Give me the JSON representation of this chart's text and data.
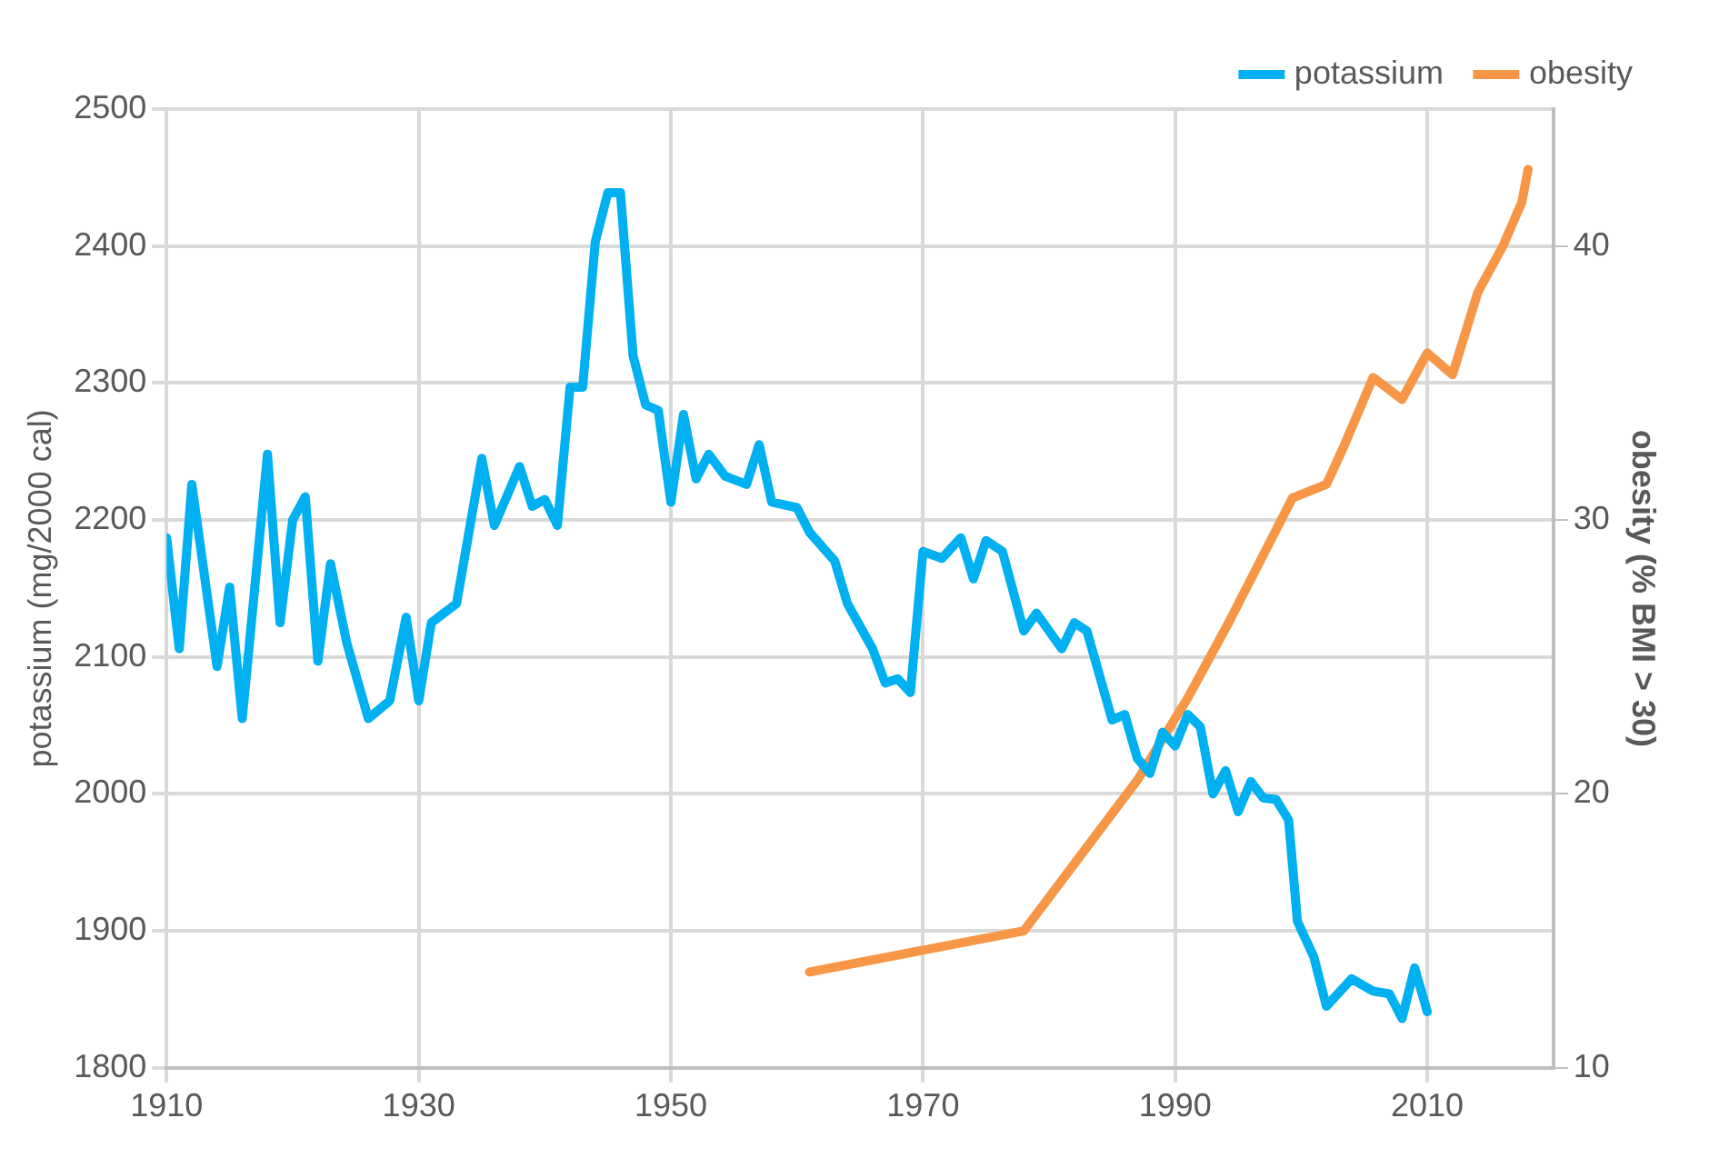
{
  "chart_data": {
    "type": "line",
    "ylabel": "potassium (mg/2000 cal)",
    "y2label": "obesity (% BMI > 30)",
    "xlim": [
      1910,
      2020
    ],
    "xticks": [
      1910,
      1930,
      1950,
      1970,
      1990,
      2010
    ],
    "ylim": [
      1800,
      2500
    ],
    "yticks": [
      1800,
      1900,
      2000,
      2100,
      2200,
      2300,
      2400,
      2500
    ],
    "y2lim": [
      10,
      45
    ],
    "y2ticks": [
      10,
      20,
      30,
      40
    ],
    "grid": true,
    "legend": "top right",
    "marker": "none",
    "line_style": "solid",
    "series": [
      {
        "name": "potassium",
        "color": "#00b0f0",
        "x": [
          1910,
          1911,
          1912,
          1914,
          1915,
          1916,
          1918,
          1919,
          1920,
          1921,
          1922,
          1923,
          1924.3,
          1926,
          1927.7,
          1929,
          1930,
          1931,
          1933,
          1935,
          1936,
          1938,
          1939,
          1940,
          1941,
          1942,
          1943,
          1944,
          1945,
          1946,
          1947,
          1948,
          1949,
          1950,
          1951,
          1952,
          1953,
          1954.3,
          1956,
          1957,
          1958,
          1960,
          1961,
          1963,
          1964,
          1966,
          1967,
          1968,
          1969,
          1970,
          1971.5,
          1973,
          1974,
          1975,
          1976.3,
          1978,
          1979,
          1981,
          1982,
          1983,
          1985,
          1986,
          1987,
          1988,
          1989,
          1990,
          1991,
          1992,
          1993,
          1994,
          1995,
          1996,
          1997,
          1998,
          1999,
          1999.7,
          2001,
          2002,
          2004,
          2005.7,
          2007,
          2008,
          2009,
          2010
        ],
        "values": [
          2187,
          2106,
          2226,
          2093,
          2151,
          2055,
          2248,
          2125,
          2200,
          2217,
          2097,
          2168,
          2110,
          2055,
          2068,
          2129,
          2068,
          2125,
          2139,
          2245,
          2196,
          2239,
          2210,
          2215,
          2196,
          2297,
          2297,
          2403,
          2439,
          2439,
          2320,
          2284,
          2280,
          2213,
          2277,
          2230,
          2248,
          2232,
          2226,
          2255,
          2213,
          2209,
          2191,
          2170,
          2139,
          2106,
          2081,
          2084,
          2074,
          2177,
          2172,
          2187,
          2157,
          2185,
          2177,
          2119,
          2132,
          2106,
          2125,
          2119,
          2054,
          2058,
          2026,
          2015,
          2045,
          2035,
          2058,
          2049,
          2000,
          2017,
          1987,
          2009,
          1997,
          1996,
          1981,
          1907,
          1881,
          1845,
          1865,
          1856,
          1854,
          1836,
          1873,
          1841
        ]
      },
      {
        "name": "obesity",
        "color": "#f79646",
        "axis": "y2",
        "x": [
          1961,
          1978,
          1987,
          1991,
          1994.3,
          1999.3,
          2002,
          2003.3,
          2005.7,
          2008,
          2010,
          2012,
          2014,
          2016,
          2017.5,
          2018
        ],
        "values": [
          13.5,
          15.0,
          20.5,
          23.5,
          26.3,
          30.8,
          31.3,
          32.6,
          35.2,
          34.4,
          36.1,
          35.3,
          38.3,
          40.0,
          41.6,
          42.8
        ]
      }
    ]
  }
}
